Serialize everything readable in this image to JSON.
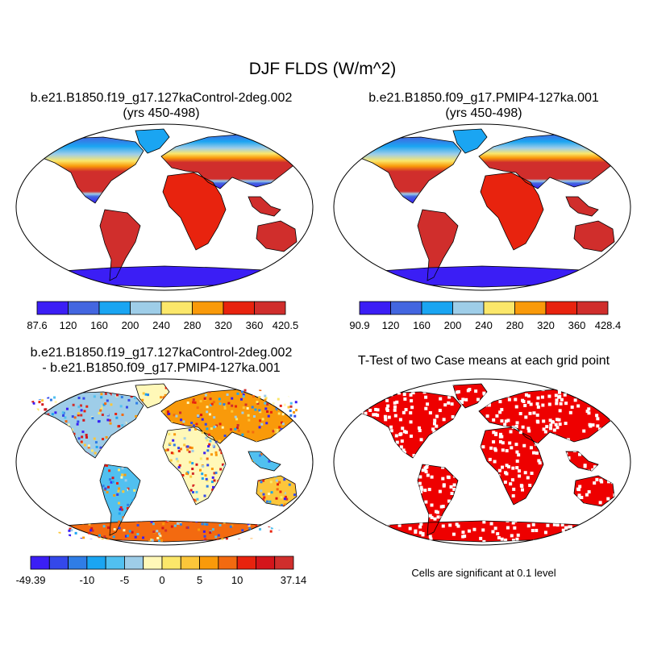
{
  "title": "DJF FLDS (W/m^2)",
  "panels": {
    "control": {
      "title_line1": "b.e21.B1850.f19_g17.127kaControl-2deg.002",
      "title_line2": "(yrs 450-498)",
      "colorbar": {
        "colors": [
          "#3b1ef5",
          "#4366e0",
          "#1aa5f2",
          "#9ecde8",
          "#fbe76a",
          "#f99a0a",
          "#e8230e",
          "#d02e2c"
        ],
        "labels": [
          "87.6",
          "120",
          "160",
          "200",
          "240",
          "280",
          "320",
          "360",
          "420.5"
        ]
      }
    },
    "pmip": {
      "title_line1": "b.e21.B1850.f09_g17.PMIP4-127ka.001",
      "title_line2": "(yrs 450-498)",
      "colorbar": {
        "colors": [
          "#3b1ef5",
          "#4366e0",
          "#1aa5f2",
          "#9ecde8",
          "#fbe76a",
          "#f99a0a",
          "#e8230e",
          "#d02e2c"
        ],
        "labels": [
          "90.9",
          "120",
          "160",
          "200",
          "240",
          "280",
          "320",
          "360",
          "428.4"
        ]
      }
    },
    "diff": {
      "title_line1": "b.e21.B1850.f19_g17.127kaControl-2deg.002",
      "title_line2": "- b.e21.B1850.f09_g17.PMIP4-127ka.001",
      "colorbar": {
        "colors": [
          "#3b1ef5",
          "#3448ea",
          "#2f7de6",
          "#1aa5f2",
          "#51c0f0",
          "#9ecde8",
          "#fff8b8",
          "#fbe76a",
          "#fcc63a",
          "#f99a0a",
          "#f36a10",
          "#e8230e",
          "#d4151b",
          "#d02e2c"
        ],
        "labels": [
          "-49.39",
          "-10",
          "-5",
          "0",
          "5",
          "10",
          "37.14"
        ]
      }
    },
    "ttest": {
      "title": "T-Test of two Case means at each grid point",
      "note": "Cells are significant at 0.1 level",
      "color": "#ee0000"
    }
  }
}
